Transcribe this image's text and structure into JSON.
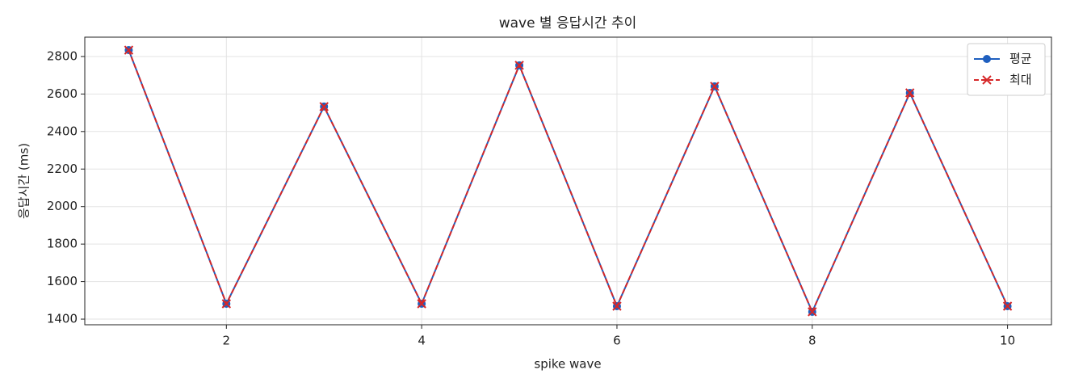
{
  "chart_data": {
    "type": "line",
    "title": "wave 별 응답시간 추이",
    "xlabel": "spike wave",
    "ylabel": "응답시간 (ms)",
    "x": [
      1,
      2,
      3,
      4,
      5,
      6,
      7,
      8,
      9,
      10
    ],
    "series": [
      {
        "name": "평균",
        "color": "#1f5fbf",
        "marker": "circle",
        "dashed": false,
        "values": [
          2834,
          1482,
          2533,
          1482,
          2753,
          1469,
          2641,
          1439,
          2606,
          1469
        ]
      },
      {
        "name": "최대",
        "color": "#d62728",
        "marker": "x",
        "dashed": true,
        "values": [
          2834,
          1482,
          2533,
          1482,
          2753,
          1469,
          2641,
          1439,
          2606,
          1469
        ]
      }
    ],
    "xlim": [
      0.55,
      10.45
    ],
    "ylim": [
      1370,
      2903
    ],
    "xticks": [
      2,
      4,
      6,
      8,
      10
    ],
    "yticks": [
      1400,
      1600,
      1800,
      2000,
      2200,
      2400,
      2600,
      2800
    ],
    "grid": true,
    "legend": "upper right"
  }
}
